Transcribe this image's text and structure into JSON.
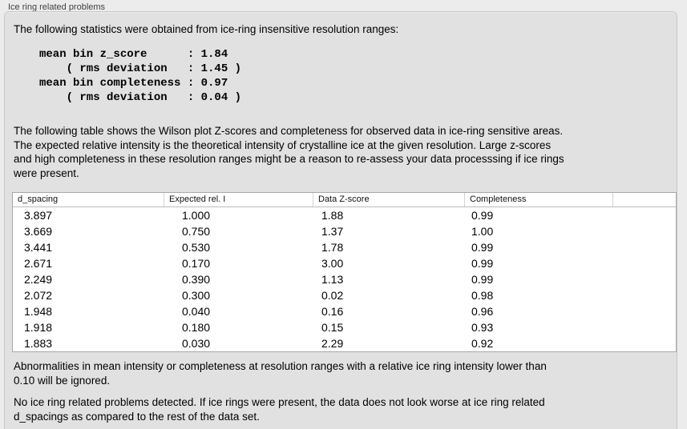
{
  "group_title": "Ice ring related problems",
  "intro_text": "The following statistics were obtained from ice-ring insensitive resolution ranges:",
  "stats": {
    "lines": [
      "mean bin z_score      : 1.84",
      "    ( rms deviation   : 1.45 )",
      "mean bin completeness : 0.97",
      "    ( rms deviation   : 0.04 )"
    ],
    "mean_bin_z_score": 1.84,
    "z_score_rms_deviation": 1.45,
    "mean_bin_completeness": 0.97,
    "completeness_rms_deviation": 0.04
  },
  "table_description": {
    "lines": [
      "The following table shows the Wilson plot Z-scores and completeness for observed data in ice-ring sensitive areas.",
      "The expected relative intensity is the theoretical intensity of crystalline ice at the given resolution. Large z-scores",
      "and high completeness in these resolution ranges might be a reason to re-assess your data processsing if ice rings",
      "were present."
    ]
  },
  "table": {
    "columns": [
      "d_spacing",
      "Expected rel. I",
      "Data Z-score",
      "Completeness",
      ""
    ],
    "rows": [
      [
        "3.897",
        "1.000",
        "1.88",
        "0.99"
      ],
      [
        "3.669",
        "0.750",
        "1.37",
        "1.00"
      ],
      [
        "3.441",
        "0.530",
        "1.78",
        "0.99"
      ],
      [
        "2.671",
        "0.170",
        "3.00",
        "0.99"
      ],
      [
        "2.249",
        "0.390",
        "1.13",
        "0.99"
      ],
      [
        "2.072",
        "0.300",
        "0.02",
        "0.98"
      ],
      [
        "1.948",
        "0.040",
        "0.16",
        "0.96"
      ],
      [
        "1.918",
        "0.180",
        "0.15",
        "0.93"
      ],
      [
        "1.883",
        "0.030",
        "2.29",
        "0.92"
      ]
    ]
  },
  "note": {
    "lines": [
      "Abnormalities in mean intensity or completeness at resolution ranges with a relative ice ring intensity lower than",
      "0.10 will be ignored."
    ]
  },
  "conclusion": {
    "lines": [
      "No ice ring related problems detected. If ice rings were present, the data does not look worse at ice ring related",
      "d_spacings as compared to the rest of the data set."
    ]
  },
  "theme": {
    "outer_background": "#ececec",
    "panel_background": "#e1e1e1",
    "panel_border": "#c7c7c7",
    "table_background": "#ffffff",
    "table_border": "#a8a8a8",
    "text_color": "#000000"
  }
}
